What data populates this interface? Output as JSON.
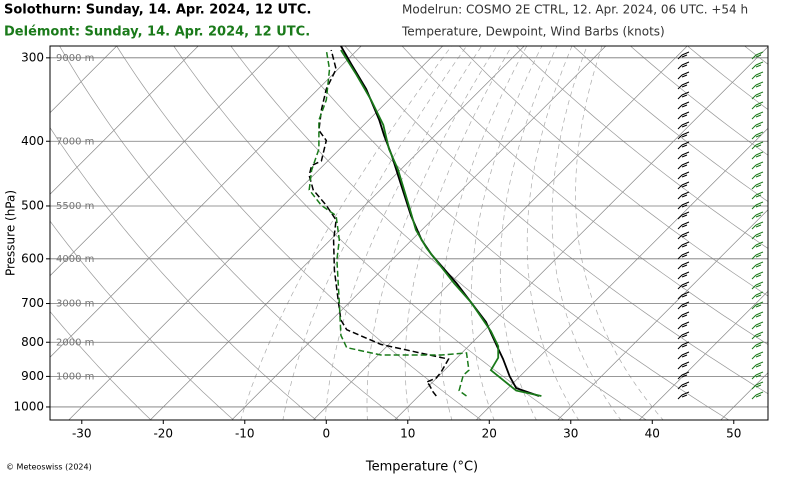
{
  "chart_data": {
    "type": "skewt",
    "title": "Solothurn: Sunday, 14. Apr. 2024, 12 UTC.",
    "subtitle": "Delémont: Sunday, 14. Apr. 2024, 12 UTC.",
    "title_color": "#000000",
    "subtitle_color": "#1a7a1a",
    "model_run": "Modelrun: COSMO 2E CTRL, 12. Apr. 2024, 06 UTC. +54 h",
    "description": "Temperature, Dewpoint, Wind Barbs (knots)",
    "x_label": "Temperature (°C)",
    "y_label": "Pressure (hPa)",
    "copyright": "© Meteoswiss (2024)",
    "xlim": [
      -33.9,
      54.2
    ],
    "xticks": [
      -30,
      -20,
      -10,
      0,
      10,
      20,
      30,
      40,
      50
    ],
    "ylim": [
      1046,
      288
    ],
    "log_y": true,
    "yticks": [
      300,
      400,
      500,
      600,
      700,
      800,
      900,
      1000
    ],
    "grid": true,
    "height_labels": [
      {
        "value": 300,
        "label": "9000 m"
      },
      {
        "value": 400,
        "label": "7000 m"
      },
      {
        "value": 500,
        "label": "5500 m"
      },
      {
        "value": 600,
        "label": "4000 m"
      },
      {
        "value": 700,
        "label": "3000 m"
      },
      {
        "value": 800,
        "label": "2000 m"
      },
      {
        "value": 900,
        "label": "1000 m"
      }
    ],
    "series": [
      {
        "color": "#000000",
        "dashed": false,
        "x": [
          26.1,
          23.3,
          22.5,
          21.7,
          21.1,
          20.4,
          19.6,
          17.8,
          16.0,
          12.9,
          11.7,
          10.4,
          9.2,
          8.0,
          7.1,
          6.5,
          4.9,
          3.1,
          1.8
        ],
        "y": [
          963,
          937,
          900,
          848,
          818,
          784,
          746,
          698,
          653,
          591,
          562,
          517,
          466,
          419,
          392,
          372,
          334,
          307,
          288
        ]
      },
      {
        "color": "#1a7a1a",
        "dashed": false,
        "x": [
          26.4,
          23.3,
          20.2,
          21.1,
          21.1,
          20.2,
          17.8,
          15.7,
          12.3,
          11.0,
          10.1,
          8.8,
          7.7,
          7.0,
          5.5,
          3.7,
          1.8
        ],
        "y": [
          963,
          945,
          881,
          844,
          811,
          770,
          698,
          653,
          578,
          543,
          498,
          441,
          411,
          378,
          347,
          318,
          292
        ]
      },
      {
        "color": "#000000",
        "dashed": true,
        "x": [
          13.5,
          13.1,
          12.6,
          12.3,
          13.5,
          14.1,
          15.0,
          6.7,
          2.5,
          1.8,
          1.5,
          1.0,
          0.9,
          1.2,
          0,
          -1.6,
          -2.1,
          -1.8,
          -0.6,
          0,
          -0.9,
          -0.6,
          0,
          1.2,
          0.6
        ],
        "y": [
          963,
          949,
          925,
          918,
          905,
          886,
          848,
          806,
          766,
          741,
          698,
          624,
          563,
          525,
          499,
          473,
          450,
          435,
          428,
          399,
          385,
          359,
          334,
          312,
          292
        ]
      },
      {
        "color": "#1a7a1a",
        "dashed": true,
        "x": [
          17.2,
          16.3,
          16.8,
          17.5,
          17.2,
          14.1,
          6.7,
          2.5,
          1.8,
          1.6,
          1.3,
          1.6,
          1.2,
          -0.6,
          -2.1,
          -1.8,
          -0.9,
          -0.9,
          0,
          0.4,
          0
        ],
        "y": [
          963,
          945,
          897,
          881,
          830,
          836,
          836,
          815,
          781,
          698,
          602,
          562,
          517,
          499,
          473,
          442,
          411,
          372,
          347,
          312,
          292
        ]
      }
    ]
  }
}
